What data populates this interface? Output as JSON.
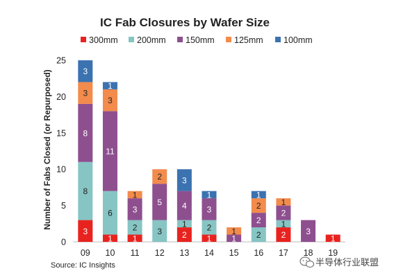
{
  "chart_data": {
    "type": "bar",
    "stacked": true,
    "title": "IC Fab Closures by Wafer Size",
    "xlabel": "",
    "ylabel": "Number of Fabs Closed (or Repurposed)",
    "ylim": [
      0,
      25
    ],
    "yticks": [
      0,
      5,
      10,
      15,
      20,
      25
    ],
    "grid": false,
    "legend_position": "top",
    "categories": [
      "09",
      "10",
      "11",
      "12",
      "13",
      "14",
      "15",
      "16",
      "17",
      "18",
      "19"
    ],
    "series": [
      {
        "name": "300mm",
        "color": "#e8231f",
        "label_color": "#ffffff",
        "values": [
          3,
          1,
          1,
          0,
          2,
          1,
          0,
          0,
          2,
          0,
          1
        ]
      },
      {
        "name": "200mm",
        "color": "#86c5c3",
        "label_color": "#222222",
        "values": [
          8,
          6,
          2,
          3,
          1,
          2,
          0,
          2,
          1,
          0,
          0
        ]
      },
      {
        "name": "150mm",
        "color": "#8e4f8f",
        "label_color": "#ffffff",
        "values": [
          8,
          11,
          3,
          5,
          4,
          3,
          1,
          2,
          2,
          3,
          0
        ]
      },
      {
        "name": "125mm",
        "color": "#f28b4c",
        "label_color": "#222222",
        "values": [
          3,
          3,
          1,
          2,
          0,
          0,
          1,
          2,
          1,
          0,
          0
        ]
      },
      {
        "name": "100mm",
        "color": "#3b72b0",
        "label_color": "#ffffff",
        "values": [
          3,
          1,
          0,
          0,
          3,
          1,
          0,
          1,
          0,
          0,
          0
        ]
      }
    ]
  },
  "source": "Source:  IC Insights",
  "watermark": "半导体行业联盟",
  "watermark_icon": "wechat-icon"
}
